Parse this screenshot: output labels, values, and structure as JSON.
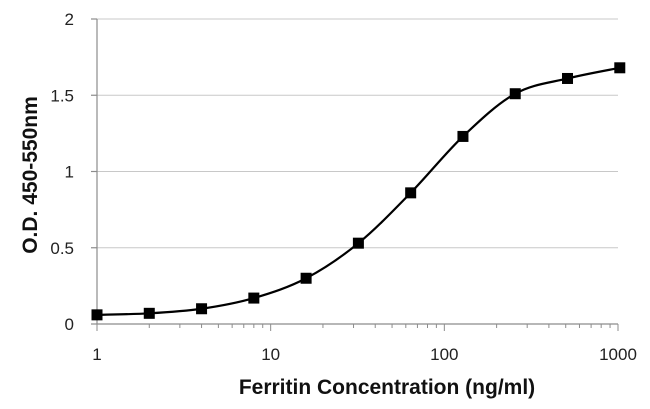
{
  "chart_data": {
    "type": "line",
    "title": "",
    "xlabel": "Ferritin Concentration (ng/ml)",
    "ylabel": "O.D. 450-550nm",
    "xscale": "log",
    "xlim": [
      1,
      1000
    ],
    "ylim": [
      0,
      2
    ],
    "grid": "horizontal",
    "legend": "none",
    "x_ticks": [
      1,
      10,
      100,
      1000
    ],
    "x_tick_labels": [
      "1",
      "10",
      "100",
      "1000"
    ],
    "y_ticks": [
      0,
      0.5,
      1,
      1.5,
      2
    ],
    "y_tick_labels": [
      "0",
      "0.5",
      "1",
      "1.5",
      "2"
    ],
    "series": [
      {
        "marker": "square",
        "smooth": true,
        "color": "#000000",
        "x": [
          1,
          2,
          4,
          8,
          16,
          32,
          64,
          128,
          256,
          512,
          1024
        ],
        "y": [
          0.06,
          0.07,
          0.1,
          0.17,
          0.3,
          0.53,
          0.86,
          1.23,
          1.51,
          1.61,
          1.68
        ]
      }
    ]
  }
}
